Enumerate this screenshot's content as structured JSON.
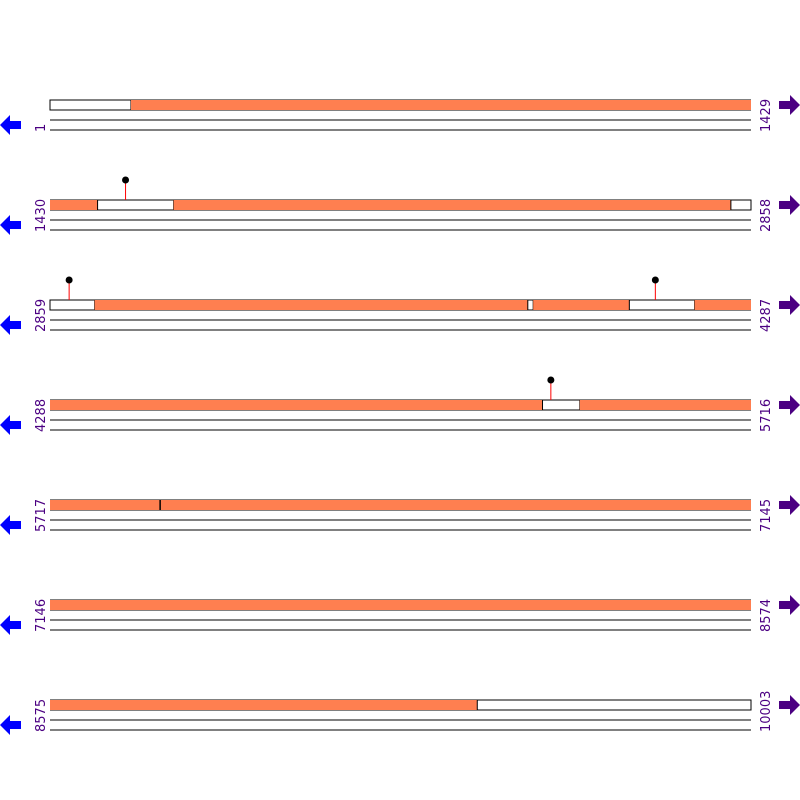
{
  "colors": {
    "feature": "#ff7f50",
    "line": "#000000",
    "marker_stem": "#ff0000",
    "marker_head": "#000000",
    "start_label": "#4b0082",
    "end_label": "#4b0082",
    "left_arrow": "#0000ff",
    "right_arrow": "#4b0082"
  },
  "sequence_length": 10003,
  "rows": [
    {
      "start": "1",
      "end": "1429",
      "start_pos": 1,
      "end_pos": 1429,
      "segments": [
        {
          "from": 1,
          "to": 166,
          "filled": false
        },
        {
          "from": 166,
          "to": 1429,
          "filled": true
        }
      ],
      "markers": []
    },
    {
      "start": "1430",
      "end": "2858",
      "start_pos": 1430,
      "end_pos": 2858,
      "segments": [
        {
          "from": 1430,
          "to": 1527,
          "filled": true
        },
        {
          "from": 1527,
          "to": 1682,
          "filled": false
        },
        {
          "from": 1682,
          "to": 2818,
          "filled": true
        },
        {
          "from": 2818,
          "to": 2858,
          "filled": false
        }
      ],
      "markers": [
        1584
      ]
    },
    {
      "start": "2859",
      "end": "4287",
      "start_pos": 2859,
      "end_pos": 4287,
      "segments": [
        {
          "from": 2859,
          "to": 2950,
          "filled": false
        },
        {
          "from": 2950,
          "to": 3833,
          "filled": true
        },
        {
          "from": 3833,
          "to": 3844,
          "filled": false
        },
        {
          "from": 3844,
          "to": 4040,
          "filled": true
        },
        {
          "from": 4040,
          "to": 4173,
          "filled": false
        },
        {
          "from": 4173,
          "to": 4287,
          "filled": true
        }
      ],
      "markers": [
        2898,
        4093
      ]
    },
    {
      "start": "4288",
      "end": "5716",
      "start_pos": 4288,
      "end_pos": 5716,
      "segments": [
        {
          "from": 4288,
          "to": 5292,
          "filled": true
        },
        {
          "from": 5292,
          "to": 5368,
          "filled": false
        },
        {
          "from": 5368,
          "to": 5716,
          "filled": true
        }
      ],
      "markers": [
        5309
      ]
    },
    {
      "start": "5717",
      "end": "7145",
      "start_pos": 5717,
      "end_pos": 7145,
      "segments": [
        {
          "from": 5717,
          "to": 5941,
          "filled": true
        },
        {
          "from": 5941,
          "to": 5943,
          "filled": false
        },
        {
          "from": 5943,
          "to": 7145,
          "filled": true
        }
      ],
      "markers": []
    },
    {
      "start": "7146",
      "end": "8574",
      "start_pos": 7146,
      "end_pos": 8574,
      "segments": [
        {
          "from": 7146,
          "to": 8574,
          "filled": true
        }
      ],
      "markers": []
    },
    {
      "start": "8575",
      "end": "10003",
      "start_pos": 8575,
      "end_pos": 10003,
      "segments": [
        {
          "from": 8575,
          "to": 9446,
          "filled": true
        },
        {
          "from": 9446,
          "to": 10003,
          "filled": false
        }
      ],
      "markers": []
    }
  ]
}
